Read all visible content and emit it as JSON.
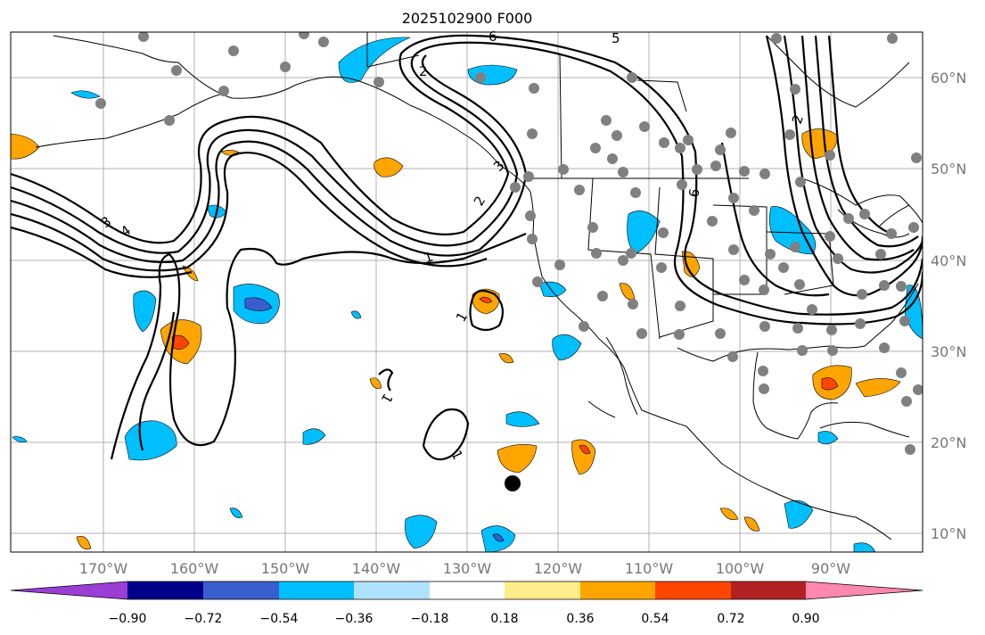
{
  "title": "2025102900 F000",
  "lon_labels": [
    "170°W",
    "160°W",
    "150°W",
    "140°W",
    "130°W",
    "120°W",
    "110°W",
    "100°W",
    "90°W"
  ],
  "lat_labels": [
    "60°N",
    "50°N",
    "40°N",
    "30°N",
    "20°N",
    "10°N"
  ],
  "contour_labels": [
    "6",
    "3",
    "5",
    "2",
    "3",
    "4",
    "2",
    "1",
    "1",
    "1",
    "1",
    "6",
    "2"
  ],
  "colorbar": {
    "ticks": [
      "−0.90",
      "−0.72",
      "−0.54",
      "−0.36",
      "−0.18",
      "0.18",
      "0.36",
      "0.54",
      "0.72",
      "0.90"
    ],
    "colors": [
      "#9a3ed6",
      "#00008b",
      "#3a5fcd",
      "#00bfff",
      "#b0e2ff",
      "#ffffff",
      "#ffec8b",
      "#ffa500",
      "#ff4500",
      "#b22222",
      "#ff87b0"
    ]
  }
}
